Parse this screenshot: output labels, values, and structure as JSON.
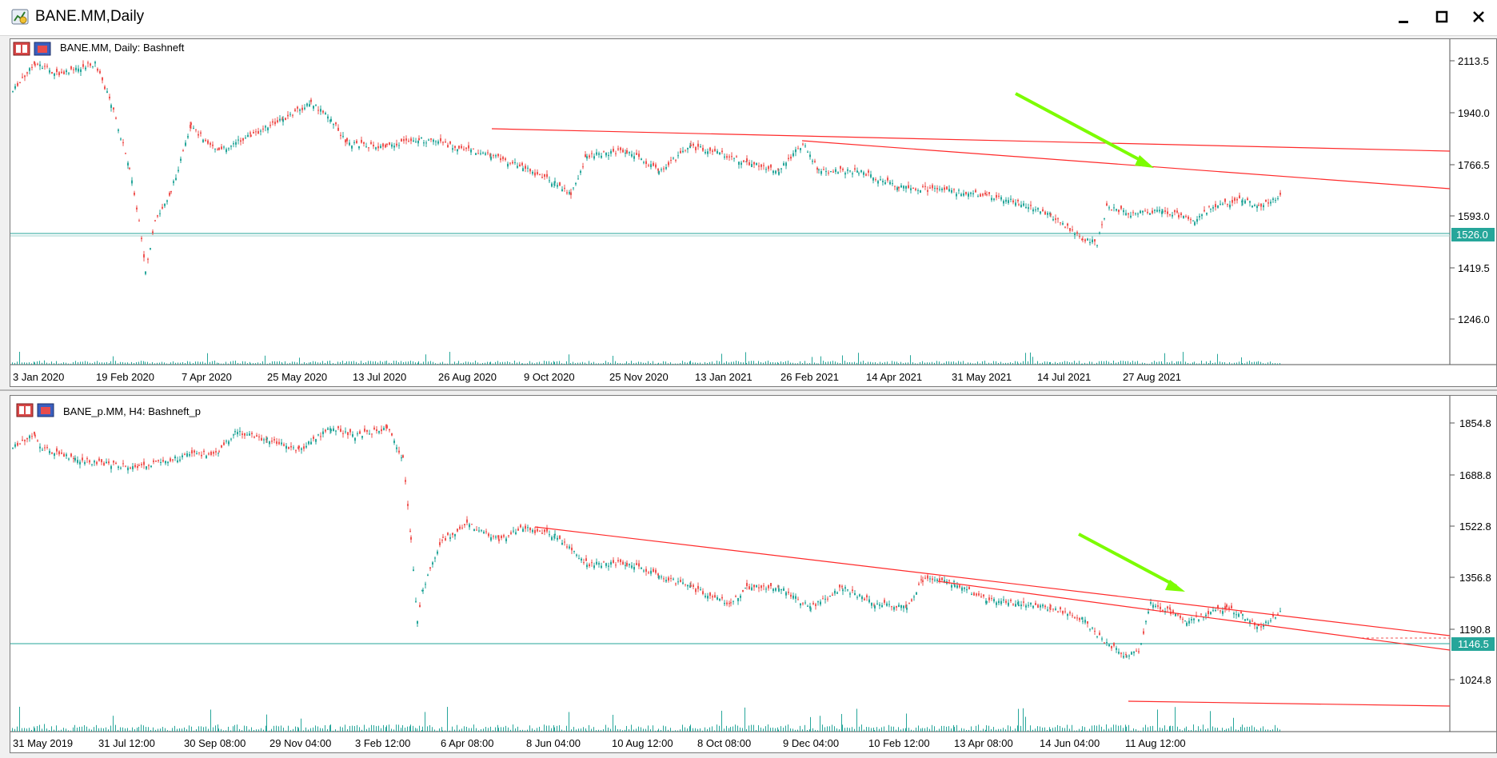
{
  "window": {
    "title": "BANE.MM,Daily"
  },
  "colors": {
    "up": "#26a69a",
    "down": "#ef5350",
    "trend": "#ff2a2a",
    "arrow": "#7cfc00",
    "level": "#26a69a"
  },
  "top_chart": {
    "label": "BANE.MM, Daily:  Bashneft",
    "price_levels": [
      "2113.5",
      "1940.0",
      "1766.5",
      "1593.0",
      "1419.5",
      "1246.0"
    ],
    "current_price": "1526.0",
    "x_labels": [
      "3 Jan 2020",
      "19 Feb 2020",
      "7 Apr 2020",
      "25 May 2020",
      "13 Jul 2020",
      "26 Aug 2020",
      "9 Oct 2020",
      "25 Nov 2020",
      "13 Jan 2021",
      "26 Feb 2021",
      "14 Apr 2021",
      "31 May 2021",
      "14 Jul 2021",
      "27 Aug 2021"
    ]
  },
  "bottom_chart": {
    "label": "BANE_p.MM, H4:  Bashneft_p",
    "price_levels": [
      "1854.8",
      "1688.8",
      "1522.8",
      "1356.8",
      "1190.8",
      "1024.8"
    ],
    "current_price": "1146.5",
    "x_labels": [
      "31 May 2019",
      "31 Jul 12:00",
      "30 Sep 08:00",
      "29 Nov 04:00",
      "3 Feb 12:00",
      "6 Apr 08:00",
      "8 Jun 04:00",
      "10 Aug 12:00",
      "8 Oct 08:00",
      "9 Dec 04:00",
      "10 Feb 12:00",
      "13 Apr 08:00",
      "14 Jun 04:00",
      "11 Aug 12:00"
    ]
  }
}
